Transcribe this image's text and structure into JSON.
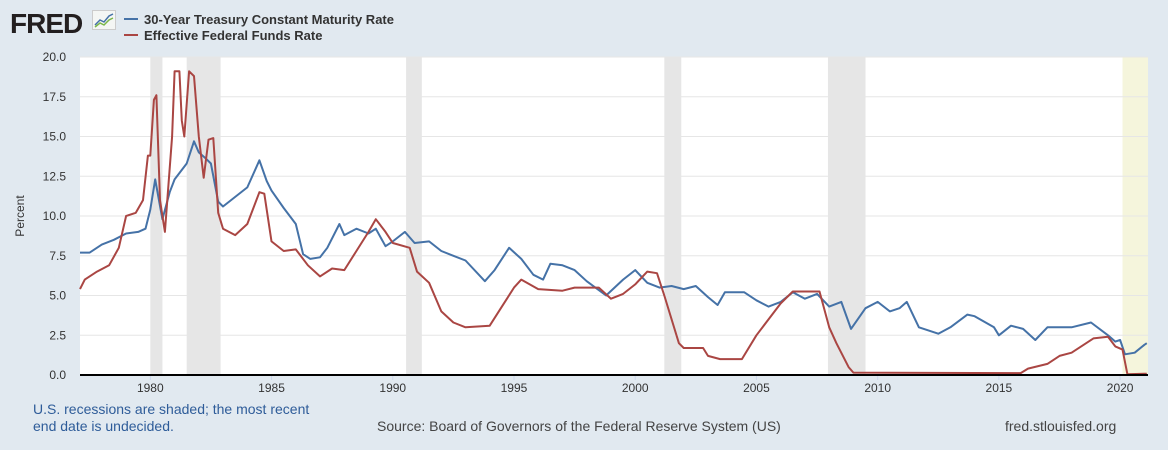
{
  "logo": "FRED",
  "chart_data": {
    "type": "line",
    "title": "",
    "xlabel": "",
    "ylabel": "Percent",
    "xlim": [
      1977.1,
      2021.15
    ],
    "ylim": [
      0,
      20
    ],
    "yticks": [
      "0.0",
      "2.5",
      "5.0",
      "7.5",
      "10.0",
      "12.5",
      "15.0",
      "17.5",
      "20.0"
    ],
    "xticks": [
      "1980",
      "1985",
      "1990",
      "1995",
      "2000",
      "2005",
      "2010",
      "2015",
      "2020"
    ],
    "grid": true,
    "legend_position": "top-left",
    "recessions": [
      [
        1980.0,
        1980.5
      ],
      [
        1981.5,
        1982.9
      ],
      [
        1990.55,
        1991.2
      ],
      [
        2001.2,
        2001.9
      ],
      [
        2007.95,
        2009.5
      ]
    ],
    "recession_undecided": [
      2020.1,
      2021.15
    ],
    "series": [
      {
        "name": "30-Year Treasury Constant Maturity Rate",
        "color": "#4572a7",
        "points": [
          [
            1977.1,
            7.7
          ],
          [
            1977.5,
            7.7
          ],
          [
            1978,
            8.2
          ],
          [
            1978.5,
            8.5
          ],
          [
            1979,
            8.9
          ],
          [
            1979.5,
            9.0
          ],
          [
            1979.8,
            9.2
          ],
          [
            1980.0,
            10.4
          ],
          [
            1980.2,
            12.3
          ],
          [
            1980.5,
            9.8
          ],
          [
            1980.8,
            11.5
          ],
          [
            1981.0,
            12.3
          ],
          [
            1981.5,
            13.3
          ],
          [
            1981.8,
            14.7
          ],
          [
            1982.0,
            14.0
          ],
          [
            1982.3,
            13.6
          ],
          [
            1982.5,
            13.3
          ],
          [
            1982.8,
            10.9
          ],
          [
            1983.0,
            10.6
          ],
          [
            1983.5,
            11.2
          ],
          [
            1984.0,
            11.8
          ],
          [
            1984.5,
            13.5
          ],
          [
            1984.8,
            12.2
          ],
          [
            1985.0,
            11.6
          ],
          [
            1985.5,
            10.5
          ],
          [
            1986.0,
            9.5
          ],
          [
            1986.3,
            7.6
          ],
          [
            1986.6,
            7.3
          ],
          [
            1987.0,
            7.4
          ],
          [
            1987.3,
            8.0
          ],
          [
            1987.8,
            9.5
          ],
          [
            1988.0,
            8.8
          ],
          [
            1988.5,
            9.2
          ],
          [
            1989.0,
            8.9
          ],
          [
            1989.3,
            9.2
          ],
          [
            1989.7,
            8.1
          ],
          [
            1990.0,
            8.4
          ],
          [
            1990.5,
            9.0
          ],
          [
            1990.9,
            8.3
          ],
          [
            1991.5,
            8.4
          ],
          [
            1992.0,
            7.8
          ],
          [
            1992.5,
            7.5
          ],
          [
            1993.0,
            7.2
          ],
          [
            1993.8,
            5.9
          ],
          [
            1994.2,
            6.6
          ],
          [
            1994.8,
            8.0
          ],
          [
            1995.3,
            7.3
          ],
          [
            1995.8,
            6.3
          ],
          [
            1996.2,
            6.0
          ],
          [
            1996.5,
            7.0
          ],
          [
            1997.0,
            6.9
          ],
          [
            1997.5,
            6.6
          ],
          [
            1998.0,
            5.9
          ],
          [
            1998.8,
            5.0
          ],
          [
            1999.5,
            6.0
          ],
          [
            2000.0,
            6.6
          ],
          [
            2000.5,
            5.8
          ],
          [
            2001.0,
            5.5
          ],
          [
            2001.5,
            5.6
          ],
          [
            2002.0,
            5.4
          ],
          [
            2002.5,
            5.6
          ],
          [
            2003.0,
            4.9
          ],
          [
            2003.4,
            4.4
          ],
          [
            2003.7,
            5.2
          ],
          [
            2004.5,
            5.2
          ],
          [
            2005.0,
            4.7
          ],
          [
            2005.5,
            4.3
          ],
          [
            2006.0,
            4.6
          ],
          [
            2006.5,
            5.2
          ],
          [
            2007.0,
            4.8
          ],
          [
            2007.5,
            5.1
          ],
          [
            2008.0,
            4.3
          ],
          [
            2008.5,
            4.6
          ],
          [
            2008.9,
            2.9
          ],
          [
            2009.5,
            4.2
          ],
          [
            2010.0,
            4.6
          ],
          [
            2010.5,
            4.0
          ],
          [
            2010.9,
            4.2
          ],
          [
            2011.2,
            4.6
          ],
          [
            2011.7,
            3.0
          ],
          [
            2012.5,
            2.6
          ],
          [
            2013.0,
            3.0
          ],
          [
            2013.7,
            3.8
          ],
          [
            2014.0,
            3.7
          ],
          [
            2014.8,
            3.0
          ],
          [
            2015.0,
            2.5
          ],
          [
            2015.5,
            3.1
          ],
          [
            2016.0,
            2.9
          ],
          [
            2016.5,
            2.2
          ],
          [
            2017.0,
            3.0
          ],
          [
            2018.0,
            3.0
          ],
          [
            2018.8,
            3.3
          ],
          [
            2019.5,
            2.5
          ],
          [
            2019.8,
            2.1
          ],
          [
            2020.0,
            2.2
          ],
          [
            2020.2,
            1.3
          ],
          [
            2020.6,
            1.4
          ],
          [
            2021.0,
            1.9
          ],
          [
            2021.1,
            2.0
          ]
        ]
      },
      {
        "name": "Effective Federal Funds Rate",
        "color": "#aa4643",
        "points": [
          [
            1977.1,
            5.4
          ],
          [
            1977.3,
            6.0
          ],
          [
            1977.8,
            6.5
          ],
          [
            1978.3,
            6.9
          ],
          [
            1978.7,
            8.0
          ],
          [
            1979.0,
            10.0
          ],
          [
            1979.4,
            10.2
          ],
          [
            1979.7,
            11.0
          ],
          [
            1979.9,
            13.8
          ],
          [
            1980.0,
            13.8
          ],
          [
            1980.15,
            17.3
          ],
          [
            1980.25,
            17.6
          ],
          [
            1980.4,
            11.0
          ],
          [
            1980.6,
            9.0
          ],
          [
            1980.9,
            15.0
          ],
          [
            1981.0,
            19.1
          ],
          [
            1981.2,
            19.1
          ],
          [
            1981.3,
            16.0
          ],
          [
            1981.4,
            15.0
          ],
          [
            1981.6,
            19.1
          ],
          [
            1981.8,
            18.8
          ],
          [
            1982.0,
            15.0
          ],
          [
            1982.2,
            12.4
          ],
          [
            1982.4,
            14.8
          ],
          [
            1982.6,
            14.9
          ],
          [
            1982.8,
            10.2
          ],
          [
            1983.0,
            9.2
          ],
          [
            1983.5,
            8.8
          ],
          [
            1984.0,
            9.5
          ],
          [
            1984.5,
            11.5
          ],
          [
            1984.7,
            11.4
          ],
          [
            1985.0,
            8.4
          ],
          [
            1985.5,
            7.8
          ],
          [
            1986.0,
            7.9
          ],
          [
            1986.5,
            6.9
          ],
          [
            1987.0,
            6.2
          ],
          [
            1987.5,
            6.7
          ],
          [
            1988.0,
            6.6
          ],
          [
            1988.5,
            7.8
          ],
          [
            1989.0,
            9.0
          ],
          [
            1989.3,
            9.8
          ],
          [
            1989.7,
            9.0
          ],
          [
            1990.0,
            8.3
          ],
          [
            1990.7,
            8.0
          ],
          [
            1991.0,
            6.5
          ],
          [
            1991.5,
            5.8
          ],
          [
            1992.0,
            4.0
          ],
          [
            1992.5,
            3.3
          ],
          [
            1993.0,
            3.0
          ],
          [
            1994.0,
            3.1
          ],
          [
            1994.5,
            4.3
          ],
          [
            1995.0,
            5.5
          ],
          [
            1995.3,
            6.0
          ],
          [
            1996.0,
            5.4
          ],
          [
            1997.0,
            5.3
          ],
          [
            1997.5,
            5.5
          ],
          [
            1998.5,
            5.5
          ],
          [
            1999.0,
            4.8
          ],
          [
            1999.5,
            5.1
          ],
          [
            2000.0,
            5.7
          ],
          [
            2000.5,
            6.5
          ],
          [
            2000.9,
            6.4
          ],
          [
            2001.2,
            5.0
          ],
          [
            2001.8,
            2.0
          ],
          [
            2002.0,
            1.7
          ],
          [
            2002.8,
            1.7
          ],
          [
            2003.0,
            1.2
          ],
          [
            2003.5,
            1.0
          ],
          [
            2004.4,
            1.0
          ],
          [
            2005.0,
            2.5
          ],
          [
            2006.0,
            4.5
          ],
          [
            2006.5,
            5.25
          ],
          [
            2007.6,
            5.25
          ],
          [
            2008.0,
            3.0
          ],
          [
            2008.3,
            2.0
          ],
          [
            2008.8,
            0.5
          ],
          [
            2009.0,
            0.15
          ],
          [
            2015.9,
            0.12
          ],
          [
            2016.2,
            0.4
          ],
          [
            2017.0,
            0.7
          ],
          [
            2017.5,
            1.2
          ],
          [
            2018.0,
            1.4
          ],
          [
            2018.9,
            2.3
          ],
          [
            2019.5,
            2.4
          ],
          [
            2019.8,
            1.8
          ],
          [
            2020.1,
            1.6
          ],
          [
            2020.3,
            0.05
          ],
          [
            2021.1,
            0.08
          ]
        ]
      }
    ]
  },
  "footer": {
    "note": "U.S. recessions are shaded; the most recent end date is undecided.",
    "source": "Source: Board of Governors of the Federal Reserve System (US)",
    "site": "fred.stlouisfed.org"
  }
}
